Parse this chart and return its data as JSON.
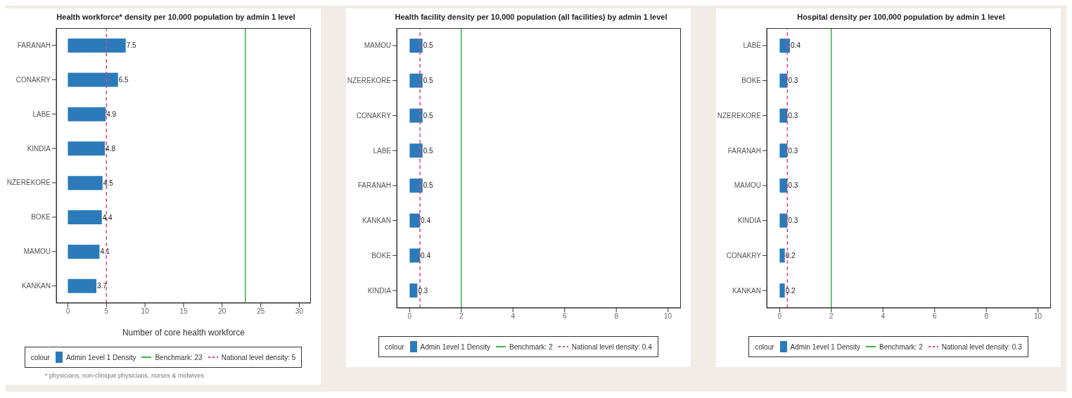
{
  "chart_data": [
    {
      "type": "bar",
      "orientation": "horizontal",
      "title": "Health workforce* density per 10,000 population by admin 1 level",
      "xlabel": "Number of core health workforce",
      "legend_title": "colour",
      "legend": "bottom",
      "data_labels": true,
      "categories": [
        "FARANAH",
        "CONAKRY",
        "LABE",
        "KINDIA",
        "NZEREKORE",
        "BOKE",
        "MAMOU",
        "KANKAN"
      ],
      "series": [
        {
          "name": "Admin 1evel 1 Density",
          "color": "#2b7bba",
          "values": [
            7.5,
            6.5,
            4.9,
            4.8,
            4.5,
            4.4,
            4.1,
            3.7
          ]
        }
      ],
      "xlim": [
        -1.5,
        31.5
      ],
      "xticks": [
        0,
        5,
        10,
        15,
        20,
        25,
        30
      ],
      "ref_lines": [
        {
          "axis": "x",
          "value": 23,
          "label": "Benchmark: 23",
          "color": "#3cb043",
          "line_style": "solid"
        },
        {
          "axis": "x",
          "value": 5,
          "label": "National level density: 5",
          "color": "#e0457b",
          "line_style": "dashed"
        }
      ],
      "annotations": [
        "* physicians, non-clinique physicians, nurses & midwives"
      ]
    },
    {
      "type": "bar",
      "orientation": "horizontal",
      "title": "Health facility density per 10,000 population (all facilities) by admin 1 level",
      "legend_title": "colour",
      "legend": "bottom",
      "data_labels": true,
      "categories": [
        "MAMOU",
        "NZEREKORE",
        "CONAKRY",
        "LABE",
        "FARANAH",
        "KANKAN",
        "BOKE",
        "KINDIA"
      ],
      "series": [
        {
          "name": "Admin 1evel 1 Density",
          "color": "#2b7bba",
          "values": [
            0.5,
            0.5,
            0.5,
            0.5,
            0.5,
            0.4,
            0.4,
            0.3
          ]
        }
      ],
      "xlim": [
        -0.5,
        10.5
      ],
      "xticks": [
        0,
        2,
        4,
        6,
        8,
        10
      ],
      "ref_lines": [
        {
          "axis": "x",
          "value": 2,
          "label": "Benchmark: 2",
          "color": "#3cb043",
          "line_style": "solid"
        },
        {
          "axis": "x",
          "value": 0.4,
          "label": "National level density: 0.4",
          "color": "#e0457b",
          "line_style": "dashed"
        }
      ]
    },
    {
      "type": "bar",
      "orientation": "horizontal",
      "title": "Hospital density per 100,000 population by admin 1 level",
      "legend_title": "colour",
      "legend": "bottom",
      "data_labels": true,
      "categories": [
        "LABE",
        "BOKE",
        "NZEREKORE",
        "FARANAH",
        "MAMOU",
        "KINDIA",
        "CONAKRY",
        "KANKAN"
      ],
      "series": [
        {
          "name": "Admin 1evel 1 Density",
          "color": "#2b7bba",
          "values": [
            0.4,
            0.3,
            0.3,
            0.3,
            0.3,
            0.3,
            0.2,
            0.2
          ]
        }
      ],
      "xlim": [
        -0.5,
        10.5
      ],
      "xticks": [
        0,
        2,
        4,
        6,
        8,
        10
      ],
      "ref_lines": [
        {
          "axis": "x",
          "value": 2,
          "label": "Benchmark: 2",
          "color": "#3cb043",
          "line_style": "solid"
        },
        {
          "axis": "x",
          "value": 0.3,
          "label": "National level density: 0.3",
          "color": "#e0457b",
          "line_style": "dashed"
        }
      ]
    }
  ]
}
